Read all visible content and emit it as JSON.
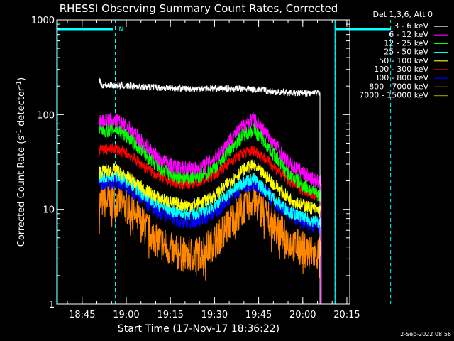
{
  "chart_data": {
    "type": "line",
    "title": "RHESSI Observing Summary Count Rates, Corrected",
    "xlabel": "Start Time (17-Nov-17 18:36:22)",
    "ylabel_main": "Corrected Count Rate (s",
    "ylabel_sup1": "-1",
    "ylabel_mid": " detector",
    "ylabel_sup2": "-1",
    "ylabel_end": ")",
    "y_scale": "log",
    "ylim": [
      1,
      1000
    ],
    "y_ticks": [
      {
        "value": 1,
        "label": "1"
      },
      {
        "value": 10,
        "label": "10"
      },
      {
        "value": 100,
        "label": "100"
      },
      {
        "value": 1000,
        "label": "1000"
      }
    ],
    "x_unit": "minutes after 18:36:22",
    "xlim": [
      0,
      99.6
    ],
    "x_ticks": [
      {
        "value": 8.63,
        "label": "18:45"
      },
      {
        "value": 23.63,
        "label": "19:00"
      },
      {
        "value": 38.63,
        "label": "19:15"
      },
      {
        "value": 53.63,
        "label": "19:30"
      },
      {
        "value": 68.63,
        "label": "19:45"
      },
      {
        "value": 83.63,
        "label": "20:00"
      },
      {
        "value": 98.63,
        "label": "20:15"
      }
    ],
    "legend_title": "Det 1,3,6, Att 0",
    "legend_position": "right",
    "markers": {
      "solid_lines": [
        0,
        94.6
      ],
      "dashed_lines": [
        19.9,
        94.6
      ],
      "top_bars": [
        [
          0,
          19.2
        ],
        [
          94.6,
          113.5
        ]
      ],
      "n_label": "N"
    },
    "series": [
      {
        "name": "3 - 6 keV",
        "color": "#ffffff",
        "x": [
          14.5,
          15,
          18,
          25,
          35,
          45,
          55,
          65,
          70,
          75,
          80,
          85,
          89.5,
          90.3
        ],
        "values": [
          240,
          205,
          205,
          200,
          193,
          188,
          190,
          186,
          183,
          172,
          170,
          168,
          168,
          0.8
        ],
        "noise": 0.035
      },
      {
        "name": "6 - 12 keV",
        "color": "#ff00ff",
        "x": [
          14.5,
          20,
          25,
          30,
          35,
          40,
          45,
          50,
          55,
          59,
          64,
          67,
          70,
          75,
          79,
          84,
          88,
          90,
          90.5
        ],
        "values": [
          85,
          88,
          70,
          48,
          34,
          28,
          27,
          29,
          38,
          55,
          80,
          90,
          70,
          45,
          30,
          24,
          20,
          19,
          0.9
        ],
        "noise": 0.08
      },
      {
        "name": "12 - 25 keV",
        "color": "#00ff00",
        "x": [
          14.5,
          20,
          25,
          30,
          35,
          40,
          45,
          50,
          55,
          59,
          64,
          67,
          70,
          75,
          79,
          84,
          88,
          90
        ],
        "values": [
          68,
          70,
          56,
          38,
          27,
          22,
          21,
          23,
          30,
          44,
          64,
          70,
          55,
          34,
          23,
          18,
          15,
          14
        ],
        "noise": 0.08
      },
      {
        "name": "25 - 50 keV",
        "color": "#00ffff",
        "x": [
          14.5,
          20,
          25,
          30,
          35,
          40,
          45,
          50,
          55,
          59,
          64,
          67,
          70,
          75,
          79,
          84,
          88,
          90
        ],
        "values": [
          22,
          23,
          19,
          14,
          11,
          9.5,
          9,
          9.5,
          12,
          15,
          20,
          21,
          17,
          12,
          9.5,
          8,
          7.5,
          7
        ],
        "noise": 0.07
      },
      {
        "name": "50 - 100 keV",
        "color": "#ffff00",
        "x": [
          14.5,
          20,
          25,
          30,
          35,
          40,
          45,
          50,
          55,
          59,
          64,
          67,
          70,
          75,
          79,
          84,
          88,
          90
        ],
        "values": [
          25,
          26,
          21,
          16,
          13,
          11.5,
          11,
          12,
          15,
          20,
          27,
          29,
          24,
          17,
          13,
          11,
          10,
          9.5
        ],
        "noise": 0.07
      },
      {
        "name": "100 - 300 keV",
        "color": "#ff0000",
        "x": [
          14.5,
          20,
          25,
          30,
          35,
          40,
          45,
          50,
          55,
          59,
          64,
          67,
          70,
          75,
          79,
          84,
          88,
          90
        ],
        "values": [
          42,
          44,
          37,
          28,
          22,
          19,
          18.5,
          20,
          25,
          32,
          40,
          42,
          36,
          26,
          20,
          16,
          14,
          13.5
        ],
        "noise": 0.06
      },
      {
        "name": "300 - 800 keV",
        "color": "#0000ff",
        "x": [
          14.5,
          20,
          25,
          30,
          35,
          40,
          45,
          50,
          55,
          59,
          64,
          67,
          70,
          75,
          79,
          84,
          88,
          90
        ],
        "values": [
          19,
          20,
          17,
          12,
          9.5,
          8,
          7.5,
          8,
          10,
          14,
          18,
          19,
          16,
          11,
          9,
          7.5,
          6.8,
          6.5
        ],
        "noise": 0.09
      },
      {
        "name": "800 - 7000 keV",
        "color": "#ff8800",
        "x": [
          14.5,
          20,
          25,
          30,
          35,
          40,
          45,
          50,
          55,
          59,
          64,
          67,
          70,
          75,
          79,
          84,
          88,
          90
        ],
        "values": [
          12,
          12.5,
          10,
          6.5,
          4.5,
          3.5,
          3.3,
          3.6,
          5,
          7.5,
          11,
          12.5,
          9.5,
          6.5,
          4.5,
          3.8,
          3.4,
          3.3
        ],
        "noise": 0.12
      },
      {
        "name": "7000 - 15000 keV",
        "color": "#888800",
        "x": [],
        "values": [],
        "noise": 0
      }
    ],
    "footer_date": "2-Sep-2022 08:56"
  }
}
